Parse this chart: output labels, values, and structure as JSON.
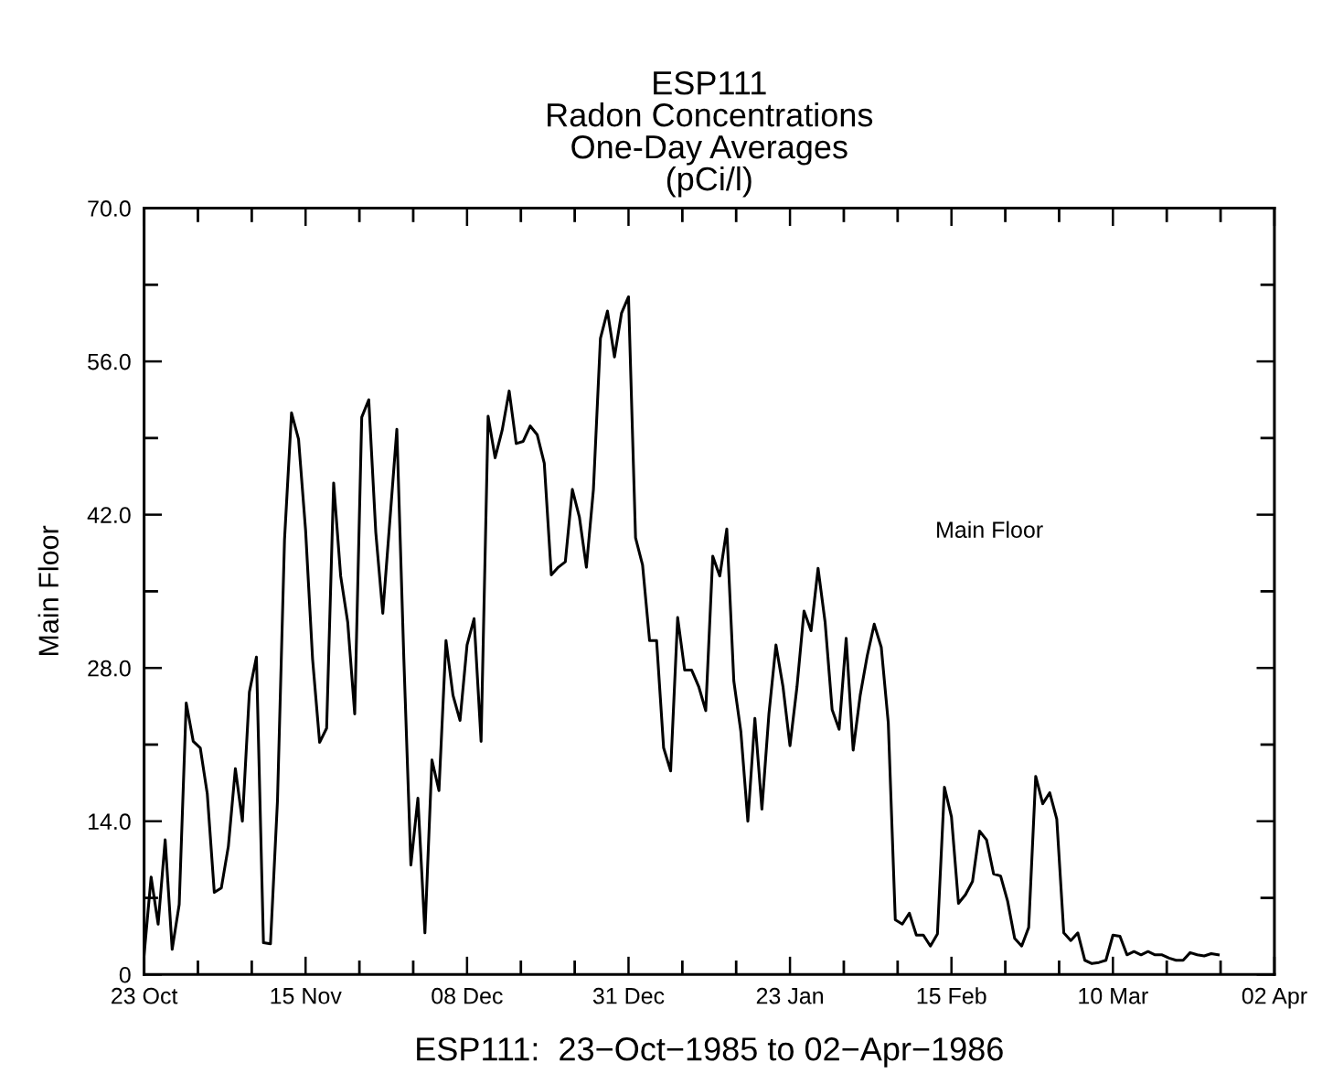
{
  "chart_data": {
    "type": "line",
    "title": "ESP111\nRadon Concentrations\nOne-Day Averages\n(pCi/l)",
    "xlabel": "ESP111:  23−Oct−1985 to 02−Apr−1986",
    "ylabel": "Main Floor",
    "xlim": [
      "1985-10-23",
      "1986-04-02"
    ],
    "xticks": [
      {
        "value": "1985-10-23",
        "label": "23 Oct"
      },
      {
        "value": "1985-10-30T16:00",
        "label": null
      },
      {
        "value": "1985-11-07T08:00",
        "label": null
      },
      {
        "value": "1985-11-15",
        "label": "15 Nov"
      },
      {
        "value": "1985-11-22T16:00",
        "label": null
      },
      {
        "value": "1985-11-30T08:00",
        "label": null
      },
      {
        "value": "1985-12-08",
        "label": "08 Dec"
      },
      {
        "value": "1985-12-15T16:00",
        "label": null
      },
      {
        "value": "1985-12-23T08:00",
        "label": null
      },
      {
        "value": "1985-12-31",
        "label": "31 Dec"
      },
      {
        "value": "1986-01-07T16:00",
        "label": null
      },
      {
        "value": "1986-01-15T08:00",
        "label": null
      },
      {
        "value": "1986-01-23",
        "label": "23 Jan"
      },
      {
        "value": "1986-01-30T16:00",
        "label": null
      },
      {
        "value": "1986-02-07T08:00",
        "label": null
      },
      {
        "value": "1986-02-15",
        "label": "15 Feb"
      },
      {
        "value": "1986-02-22T16:00",
        "label": null
      },
      {
        "value": "1986-03-02T08:00",
        "label": null
      },
      {
        "value": "1986-03-10",
        "label": "10 Mar"
      },
      {
        "value": "1986-03-17T16:00",
        "label": null
      },
      {
        "value": "1986-03-25T08:00",
        "label": null
      },
      {
        "value": "1986-04-02",
        "label": "02 Apr"
      }
    ],
    "ylim": [
      0,
      70
    ],
    "yticks": [
      {
        "value": 0,
        "label": "0"
      },
      {
        "value": 7,
        "label": null
      },
      {
        "value": 14,
        "label": "14.0"
      },
      {
        "value": 21,
        "label": null
      },
      {
        "value": 28,
        "label": "28.0"
      },
      {
        "value": 35,
        "label": null
      },
      {
        "value": 42,
        "label": "42.0"
      },
      {
        "value": 49,
        "label": null
      },
      {
        "value": 56,
        "label": "56.0"
      },
      {
        "value": 63,
        "label": null
      },
      {
        "value": 70,
        "label": "70.0"
      }
    ],
    "x": [
      "1985-10-23",
      "1985-10-24",
      "1985-10-25",
      "1985-10-26",
      "1985-10-27",
      "1985-10-28",
      "1985-10-29",
      "1985-10-30",
      "1985-10-31",
      "1985-11-01",
      "1985-11-02",
      "1985-11-03",
      "1985-11-04",
      "1985-11-05",
      "1985-11-06",
      "1985-11-07",
      "1985-11-08",
      "1985-11-09",
      "1985-11-10",
      "1985-11-11",
      "1985-11-12",
      "1985-11-13",
      "1985-11-14",
      "1985-11-15",
      "1985-11-16",
      "1985-11-17",
      "1985-11-18",
      "1985-11-19",
      "1985-11-20",
      "1985-11-21",
      "1985-11-22",
      "1985-11-23",
      "1985-11-24",
      "1985-11-25",
      "1985-11-26",
      "1985-11-27",
      "1985-11-28",
      "1985-11-29",
      "1985-11-30",
      "1985-12-01",
      "1985-12-02",
      "1985-12-03",
      "1985-12-04",
      "1985-12-05",
      "1985-12-06",
      "1985-12-07",
      "1985-12-08",
      "1985-12-09",
      "1985-12-10",
      "1985-12-11",
      "1985-12-12",
      "1985-12-13",
      "1985-12-14",
      "1985-12-15",
      "1985-12-16",
      "1985-12-17",
      "1985-12-18",
      "1985-12-19",
      "1985-12-20",
      "1985-12-21",
      "1985-12-22",
      "1985-12-23",
      "1985-12-24",
      "1985-12-25",
      "1985-12-26",
      "1985-12-27",
      "1985-12-28",
      "1985-12-29",
      "1985-12-30",
      "1985-12-31",
      "1986-01-01",
      "1986-01-02",
      "1986-01-03",
      "1986-01-04",
      "1986-01-05",
      "1986-01-06",
      "1986-01-07",
      "1986-01-08",
      "1986-01-09",
      "1986-01-10",
      "1986-01-11",
      "1986-01-12",
      "1986-01-13",
      "1986-01-14",
      "1986-01-15",
      "1986-01-16",
      "1986-01-17",
      "1986-01-18",
      "1986-01-19",
      "1986-01-20",
      "1986-01-21",
      "1986-01-22",
      "1986-01-23",
      "1986-01-24",
      "1986-01-25",
      "1986-01-26",
      "1986-01-27",
      "1986-01-28",
      "1986-01-29",
      "1986-01-30",
      "1986-01-31",
      "1986-02-01",
      "1986-02-02",
      "1986-02-03",
      "1986-02-04",
      "1986-02-05",
      "1986-02-06",
      "1986-02-07",
      "1986-02-08",
      "1986-02-09",
      "1986-02-10",
      "1986-02-11",
      "1986-02-12",
      "1986-02-13",
      "1986-02-14",
      "1986-02-15",
      "1986-02-16",
      "1986-02-17",
      "1986-02-18",
      "1986-02-19",
      "1986-02-20",
      "1986-02-21",
      "1986-02-22",
      "1986-02-23",
      "1986-02-24",
      "1986-02-25",
      "1986-02-26",
      "1986-02-27",
      "1986-02-28",
      "1986-03-01",
      "1986-03-02",
      "1986-03-03",
      "1986-03-04",
      "1986-03-05",
      "1986-03-06",
      "1986-03-07",
      "1986-03-08",
      "1986-03-09",
      "1986-03-10",
      "1986-03-11",
      "1986-03-12",
      "1986-03-13",
      "1986-03-14",
      "1986-03-15",
      "1986-03-16",
      "1986-03-17",
      "1986-03-18",
      "1986-03-19",
      "1986-03-20",
      "1986-03-21",
      "1986-03-22",
      "1986-03-23",
      "1986-03-24",
      "1986-03-25"
    ],
    "series": [
      {
        "name": "Main Floor",
        "color": "#000000",
        "values": [
          1.8,
          8.9,
          4.6,
          12.3,
          2.3,
          6.4,
          24.8,
          21.3,
          20.7,
          16.5,
          7.5,
          7.9,
          11.7,
          18.8,
          14.0,
          25.8,
          29.0,
          2.9,
          2.8,
          15.9,
          39.7,
          51.3,
          48.9,
          40.6,
          28.8,
          21.2,
          22.5,
          44.9,
          36.4,
          32.2,
          23.8,
          50.9,
          52.5,
          40.4,
          33.0,
          41.4,
          49.8,
          28.8,
          10.0,
          16.1,
          3.8,
          19.6,
          16.8,
          30.5,
          25.5,
          23.2,
          30.1,
          32.5,
          21.3,
          51.0,
          47.2,
          49.7,
          53.3,
          48.5,
          48.7,
          50.1,
          49.3,
          46.7,
          36.5,
          37.2,
          37.7,
          44.3,
          41.8,
          37.2,
          44.3,
          58.1,
          60.6,
          56.4,
          60.4,
          61.9,
          39.9,
          37.4,
          30.5,
          30.5,
          20.7,
          18.6,
          32.6,
          27.8,
          27.8,
          26.3,
          24.1,
          38.2,
          36.4,
          40.7,
          26.8,
          22.2,
          14.0,
          23.4,
          15.1,
          23.8,
          30.1,
          26.3,
          20.9,
          26.3,
          33.2,
          31.4,
          37.1,
          32.2,
          24.2,
          22.4,
          30.7,
          20.5,
          25.5,
          29.1,
          32.0,
          29.9,
          23.0,
          5.0,
          4.6,
          5.6,
          3.6,
          3.6,
          2.6,
          3.7,
          17.1,
          14.4,
          6.5,
          7.3,
          8.5,
          13.1,
          12.3,
          9.2,
          9.0,
          6.7,
          3.3,
          2.6,
          4.3,
          18.1,
          15.6,
          16.6,
          14.2,
          3.8,
          3.1,
          3.8,
          1.3,
          1.0,
          1.1,
          1.3,
          3.6,
          3.5,
          1.8,
          2.1,
          1.8,
          2.1,
          1.8,
          1.8,
          1.5,
          1.3,
          1.3,
          2.0,
          1.8,
          1.7,
          1.9,
          1.8
        ]
      }
    ]
  }
}
